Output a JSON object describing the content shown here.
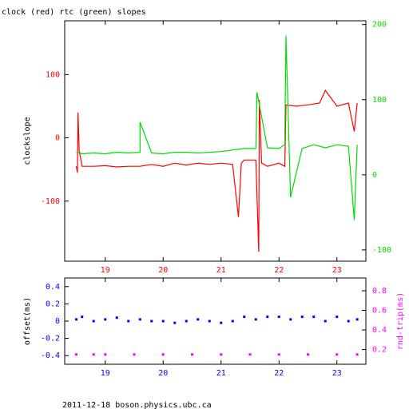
{
  "header": {
    "title": "clock (red) rtc (green) slopes"
  },
  "footer": {
    "text": "2011-12-18 boson.physics.ubc.ca"
  },
  "colors": {
    "axis": "#000000",
    "clock": "#ff0000",
    "rtc": "#00dd00",
    "offset": "#0000ff",
    "rndtrip": "#ff00ff"
  },
  "chart_data": [
    {
      "type": "line",
      "title": "clock (red) rtc (green) slopes",
      "xlabel": "",
      "ylabel": "clockslope",
      "xlim": [
        18.3,
        23.5
      ],
      "ylim": [
        -195,
        185
      ],
      "y2lim": [
        -115,
        205
      ],
      "x_ticks": [
        19,
        20,
        21,
        22,
        23
      ],
      "y_ticks": [
        100,
        0,
        -100
      ],
      "y2_ticks": [
        200,
        100,
        0,
        -100
      ],
      "series": [
        {
          "name": "clock (red)",
          "axis": "left",
          "color": "#ff0000",
          "points": [
            [
              18.5,
              -45
            ],
            [
              18.52,
              -55
            ],
            [
              18.53,
              40
            ],
            [
              18.55,
              -20
            ],
            [
              18.6,
              -45
            ],
            [
              18.8,
              -45
            ],
            [
              19.0,
              -44
            ],
            [
              19.2,
              -46
            ],
            [
              19.4,
              -45
            ],
            [
              19.6,
              -45
            ],
            [
              19.8,
              -42
            ],
            [
              20.0,
              -45
            ],
            [
              20.2,
              -40
            ],
            [
              20.4,
              -43
            ],
            [
              20.6,
              -40
            ],
            [
              20.8,
              -42
            ],
            [
              21.0,
              -40
            ],
            [
              21.2,
              -42
            ],
            [
              21.3,
              -125
            ],
            [
              21.35,
              -40
            ],
            [
              21.4,
              -35
            ],
            [
              21.6,
              -35
            ],
            [
              21.65,
              -180
            ],
            [
              21.66,
              60
            ],
            [
              21.7,
              -40
            ],
            [
              21.8,
              -45
            ],
            [
              22.0,
              -40
            ],
            [
              22.1,
              -45
            ],
            [
              22.12,
              52
            ],
            [
              22.3,
              50
            ],
            [
              22.5,
              52
            ],
            [
              22.7,
              55
            ],
            [
              22.8,
              75
            ],
            [
              23.0,
              50
            ],
            [
              23.2,
              55
            ],
            [
              23.3,
              10
            ],
            [
              23.35,
              55
            ]
          ]
        },
        {
          "name": "rtc (green)",
          "axis": "right",
          "color": "#00dd00",
          "points": [
            [
              18.5,
              30
            ],
            [
              18.6,
              28
            ],
            [
              18.8,
              29
            ],
            [
              19.0,
              28
            ],
            [
              19.2,
              30
            ],
            [
              19.4,
              29
            ],
            [
              19.6,
              30
            ],
            [
              19.6,
              70
            ],
            [
              19.8,
              29
            ],
            [
              20.0,
              28
            ],
            [
              20.2,
              30
            ],
            [
              20.4,
              30
            ],
            [
              20.6,
              29
            ],
            [
              20.8,
              30
            ],
            [
              21.0,
              31
            ],
            [
              21.2,
              33
            ],
            [
              21.4,
              35
            ],
            [
              21.6,
              35
            ],
            [
              21.62,
              110
            ],
            [
              21.8,
              36
            ],
            [
              22.0,
              35
            ],
            [
              22.1,
              40
            ],
            [
              22.12,
              185
            ],
            [
              22.2,
              -30
            ],
            [
              22.4,
              35
            ],
            [
              22.6,
              40
            ],
            [
              22.8,
              36
            ],
            [
              23.0,
              40
            ],
            [
              23.2,
              38
            ],
            [
              23.3,
              -60
            ],
            [
              23.35,
              40
            ]
          ]
        }
      ]
    },
    {
      "type": "scatter",
      "xlabel": "",
      "ylabel": "offset(ms)",
      "y2label": "rnd-trip(ms)",
      "xlim": [
        18.3,
        23.5
      ],
      "ylim": [
        -0.5,
        0.5
      ],
      "y2lim": [
        0.05,
        0.93
      ],
      "x_ticks": [
        19,
        20,
        21,
        22,
        23
      ],
      "y_ticks": [
        0.4,
        0.2,
        0,
        -0.2,
        -0.4
      ],
      "y2_ticks": [
        0.8,
        0.6,
        0.4,
        0.2
      ],
      "series": [
        {
          "name": "offset(ms)",
          "axis": "left",
          "color": "#0000ff",
          "points": [
            [
              18.5,
              0.02
            ],
            [
              18.6,
              0.05
            ],
            [
              18.8,
              0.0
            ],
            [
              19.0,
              0.02
            ],
            [
              19.2,
              0.04
            ],
            [
              19.4,
              0.0
            ],
            [
              19.6,
              0.02
            ],
            [
              19.8,
              0.0
            ],
            [
              20.0,
              0.0
            ],
            [
              20.2,
              -0.02
            ],
            [
              20.4,
              0.0
            ],
            [
              20.6,
              0.02
            ],
            [
              20.8,
              0.0
            ],
            [
              21.0,
              -0.02
            ],
            [
              21.2,
              0.0
            ],
            [
              21.4,
              0.05
            ],
            [
              21.6,
              0.02
            ],
            [
              21.8,
              0.05
            ],
            [
              22.0,
              0.05
            ],
            [
              22.2,
              0.02
            ],
            [
              22.4,
              0.05
            ],
            [
              22.6,
              0.05
            ],
            [
              22.8,
              0.0
            ],
            [
              23.0,
              0.05
            ],
            [
              23.2,
              0.0
            ],
            [
              23.35,
              0.02
            ]
          ]
        },
        {
          "name": "rnd-trip(ms)",
          "axis": "right",
          "color": "#ff00ff",
          "points": [
            [
              18.5,
              0.15
            ],
            [
              18.8,
              0.15
            ],
            [
              19.0,
              0.15
            ],
            [
              19.5,
              0.15
            ],
            [
              20.0,
              0.15
            ],
            [
              20.5,
              0.15
            ],
            [
              21.0,
              0.15
            ],
            [
              21.5,
              0.15
            ],
            [
              22.0,
              0.15
            ],
            [
              22.5,
              0.15
            ],
            [
              23.0,
              0.15
            ],
            [
              23.35,
              0.15
            ]
          ]
        }
      ]
    }
  ]
}
